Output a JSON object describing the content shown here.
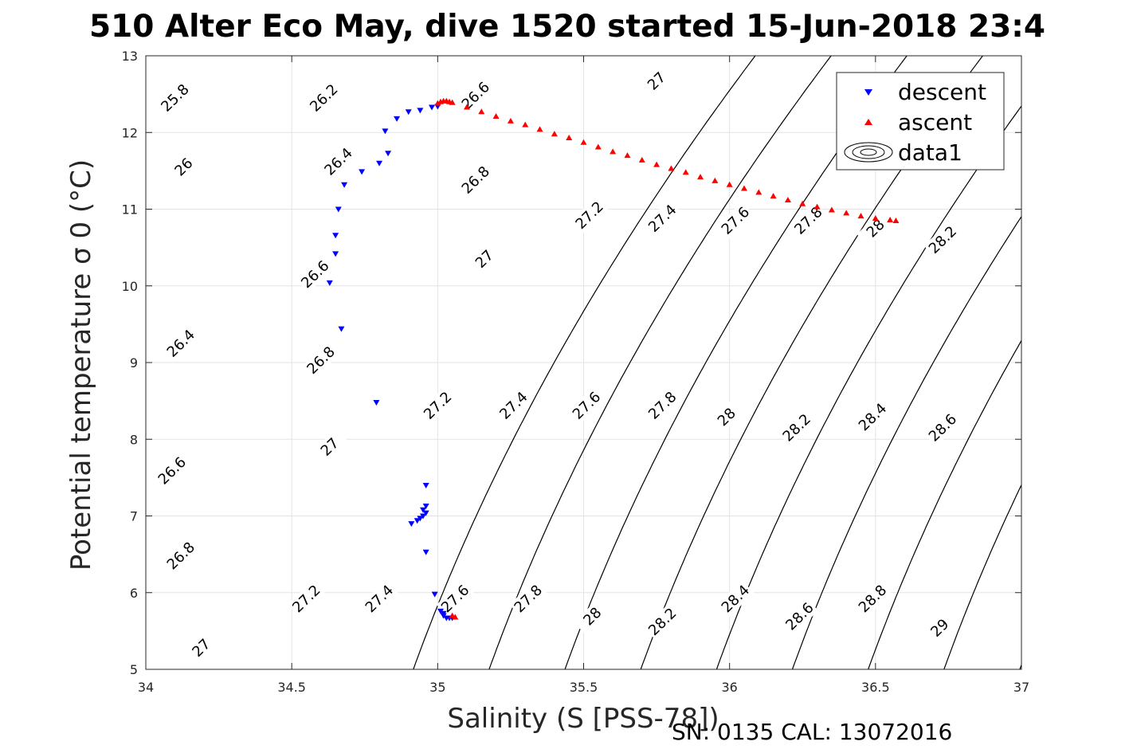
{
  "chart_data": {
    "type": "scatter",
    "title": "510 Alter Eco May, dive 1520 started 15-Jun-2018 23:4",
    "xlabel": "Salinity (S [PSS-78])",
    "ylabel": "Potential temperature σ 0 (°C)",
    "xlim": [
      34,
      37
    ],
    "ylim": [
      5,
      13
    ],
    "xticks": [
      34,
      34.5,
      35,
      35.5,
      36,
      36.5,
      37
    ],
    "xtick_labels": [
      "34",
      "34.5",
      "35",
      "35.5",
      "36",
      "36.5",
      "37"
    ],
    "yticks": [
      5,
      6,
      7,
      8,
      9,
      10,
      11,
      12,
      13
    ],
    "ytick_labels": [
      "5",
      "6",
      "7",
      "8",
      "9",
      "10",
      "11",
      "12",
      "13"
    ],
    "grid": true,
    "legend_position": "top-right",
    "footnote": "SN: 0135  CAL: 13072016",
    "series": [
      {
        "name": "descent",
        "marker": "triangle-down",
        "color": "#0000ff",
        "x": [
          35.0,
          34.98,
          34.94,
          34.9,
          34.86,
          34.82,
          34.8,
          34.83,
          34.74,
          34.68,
          34.66,
          34.65,
          34.65,
          34.63,
          34.67,
          34.79,
          34.96,
          34.96,
          34.95,
          34.96,
          34.95,
          34.94,
          34.93,
          34.91,
          34.96,
          34.99,
          35.01,
          35.02,
          35.02,
          35.03,
          35.04,
          35.05
        ],
        "y": [
          12.34,
          12.33,
          12.29,
          12.27,
          12.18,
          12.02,
          11.6,
          11.73,
          11.49,
          11.32,
          11.0,
          10.66,
          10.42,
          10.04,
          9.44,
          8.48,
          7.4,
          7.13,
          7.08,
          7.04,
          7.0,
          6.97,
          6.94,
          6.9,
          6.53,
          5.98,
          5.76,
          5.73,
          5.7,
          5.67,
          5.67,
          5.67
        ]
      },
      {
        "name": "ascent",
        "marker": "triangle-up",
        "color": "#ff0000",
        "x": [
          35.06,
          35.05,
          35.0,
          35.01,
          35.02,
          35.03,
          35.04,
          35.05,
          35.1,
          35.15,
          35.2,
          35.25,
          35.3,
          35.35,
          35.4,
          35.45,
          35.5,
          35.55,
          35.6,
          35.65,
          35.7,
          35.75,
          35.8,
          35.85,
          35.9,
          35.95,
          36.0,
          36.05,
          36.1,
          36.15,
          36.2,
          36.25,
          36.3,
          36.35,
          36.4,
          36.45,
          36.5,
          36.55,
          36.57
        ],
        "y": [
          5.68,
          5.7,
          12.38,
          12.4,
          12.41,
          12.41,
          12.4,
          12.39,
          12.33,
          12.27,
          12.21,
          12.15,
          12.1,
          12.04,
          11.98,
          11.93,
          11.87,
          11.81,
          11.75,
          11.7,
          11.64,
          11.58,
          11.53,
          11.48,
          11.42,
          11.37,
          11.32,
          11.27,
          11.22,
          11.17,
          11.12,
          11.07,
          11.03,
          10.99,
          10.95,
          10.91,
          10.88,
          10.86,
          10.85
        ]
      },
      {
        "name": "data1",
        "type": "contour",
        "color": "#000000",
        "levels": [
          25.8,
          26,
          26.2,
          26.4,
          26.6,
          26.8,
          27,
          27.2,
          27.4,
          27.6,
          27.8,
          28,
          28.2,
          28.4,
          28.6,
          28.8,
          29
        ]
      }
    ],
    "contour_labels": [
      {
        "text": "25.8",
        "s": 34.1,
        "t": 12.45
      },
      {
        "text": "26.2",
        "s": 34.61,
        "t": 12.45
      },
      {
        "text": "26.6",
        "s": 35.13,
        "t": 12.48
      },
      {
        "text": "27",
        "s": 35.75,
        "t": 12.67
      },
      {
        "text": "26",
        "s": 34.13,
        "t": 11.55
      },
      {
        "text": "26.4",
        "s": 34.66,
        "t": 11.62
      },
      {
        "text": "26.8",
        "s": 35.13,
        "t": 11.38
      },
      {
        "text": "27.2",
        "s": 35.52,
        "t": 10.92
      },
      {
        "text": "27.4",
        "s": 35.77,
        "t": 10.88
      },
      {
        "text": "27.6",
        "s": 36.02,
        "t": 10.85
      },
      {
        "text": "27.8",
        "s": 36.27,
        "t": 10.85
      },
      {
        "text": "28",
        "s": 36.5,
        "t": 10.75
      },
      {
        "text": "28.2",
        "s": 36.73,
        "t": 10.6
      },
      {
        "text": "27",
        "s": 35.16,
        "t": 10.35
      },
      {
        "text": "26.6",
        "s": 34.58,
        "t": 10.15
      },
      {
        "text": "26.4",
        "s": 34.12,
        "t": 9.25
      },
      {
        "text": "26.8",
        "s": 34.6,
        "t": 9.03
      },
      {
        "text": "27.2",
        "s": 35.0,
        "t": 8.44
      },
      {
        "text": "27.4",
        "s": 35.26,
        "t": 8.44
      },
      {
        "text": "27.6",
        "s": 35.51,
        "t": 8.44
      },
      {
        "text": "27.8",
        "s": 35.77,
        "t": 8.44
      },
      {
        "text": "28",
        "s": 35.99,
        "t": 8.29
      },
      {
        "text": "28.2",
        "s": 36.23,
        "t": 8.15
      },
      {
        "text": "28.4",
        "s": 36.49,
        "t": 8.29
      },
      {
        "text": "28.6",
        "s": 36.73,
        "t": 8.15
      },
      {
        "text": "27",
        "s": 34.63,
        "t": 7.9
      },
      {
        "text": "26.6",
        "s": 34.09,
        "t": 7.59
      },
      {
        "text": "26.8",
        "s": 34.12,
        "t": 6.48
      },
      {
        "text": "27.2",
        "s": 34.55,
        "t": 5.92
      },
      {
        "text": "27.4",
        "s": 34.8,
        "t": 5.92
      },
      {
        "text": "27.6",
        "s": 35.06,
        "t": 5.92
      },
      {
        "text": "27.8",
        "s": 35.31,
        "t": 5.92
      },
      {
        "text": "28",
        "s": 35.53,
        "t": 5.69
      },
      {
        "text": "28.2",
        "s": 35.77,
        "t": 5.62
      },
      {
        "text": "28.4",
        "s": 36.02,
        "t": 5.92
      },
      {
        "text": "28.6",
        "s": 36.24,
        "t": 5.69
      },
      {
        "text": "28.8",
        "s": 36.49,
        "t": 5.92
      },
      {
        "text": "29",
        "s": 36.72,
        "t": 5.54
      },
      {
        "text": "27",
        "s": 34.19,
        "t": 5.28
      }
    ]
  }
}
